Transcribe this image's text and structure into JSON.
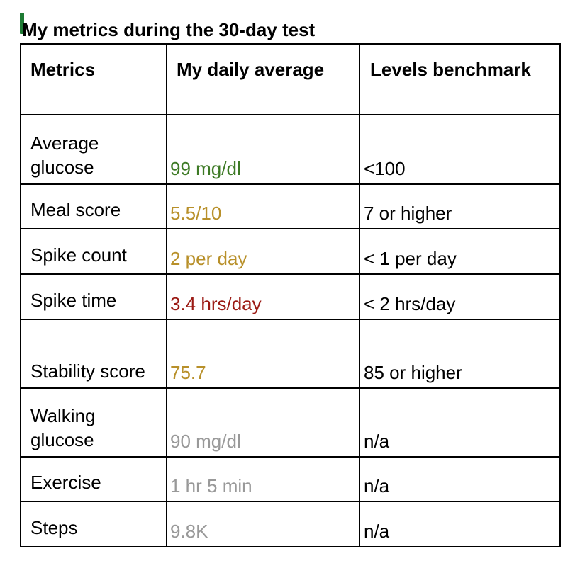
{
  "document": {
    "caption": "My metrics during the 30-day test"
  },
  "colors": {
    "good": "#3d7a25",
    "warning": "#b8902a",
    "bad": "#9b1a14",
    "neutral": "#999999",
    "cursor": "#1e7b34"
  },
  "table": {
    "headers": {
      "metric": "Metrics",
      "average": "My daily average",
      "benchmark": "Levels benchmark"
    },
    "rows": [
      {
        "metric": "Average glucose",
        "average": "99 mg/dl",
        "benchmark": "<100",
        "status": "good"
      },
      {
        "metric": "Meal score",
        "average": "5.5/10",
        "benchmark": "7 or higher",
        "status": "warning"
      },
      {
        "metric": "Spike count",
        "average": "2 per day",
        "benchmark": "< 1 per day",
        "status": "warning"
      },
      {
        "metric": "Spike time",
        "average": "3.4 hrs/day",
        "benchmark": "< 2 hrs/day",
        "status": "bad"
      },
      {
        "metric": "Stability score",
        "average": "75.7",
        "benchmark": "85 or higher",
        "status": "warning"
      },
      {
        "metric": "Walking glucose",
        "average": "90 mg/dl",
        "benchmark": "n/a",
        "status": "neutral"
      },
      {
        "metric": "Exercise",
        "average": "1 hr 5 min",
        "benchmark": "n/a",
        "status": "neutral"
      },
      {
        "metric": "Steps",
        "average": "9.8K",
        "benchmark": "n/a",
        "status": "neutral"
      }
    ]
  }
}
